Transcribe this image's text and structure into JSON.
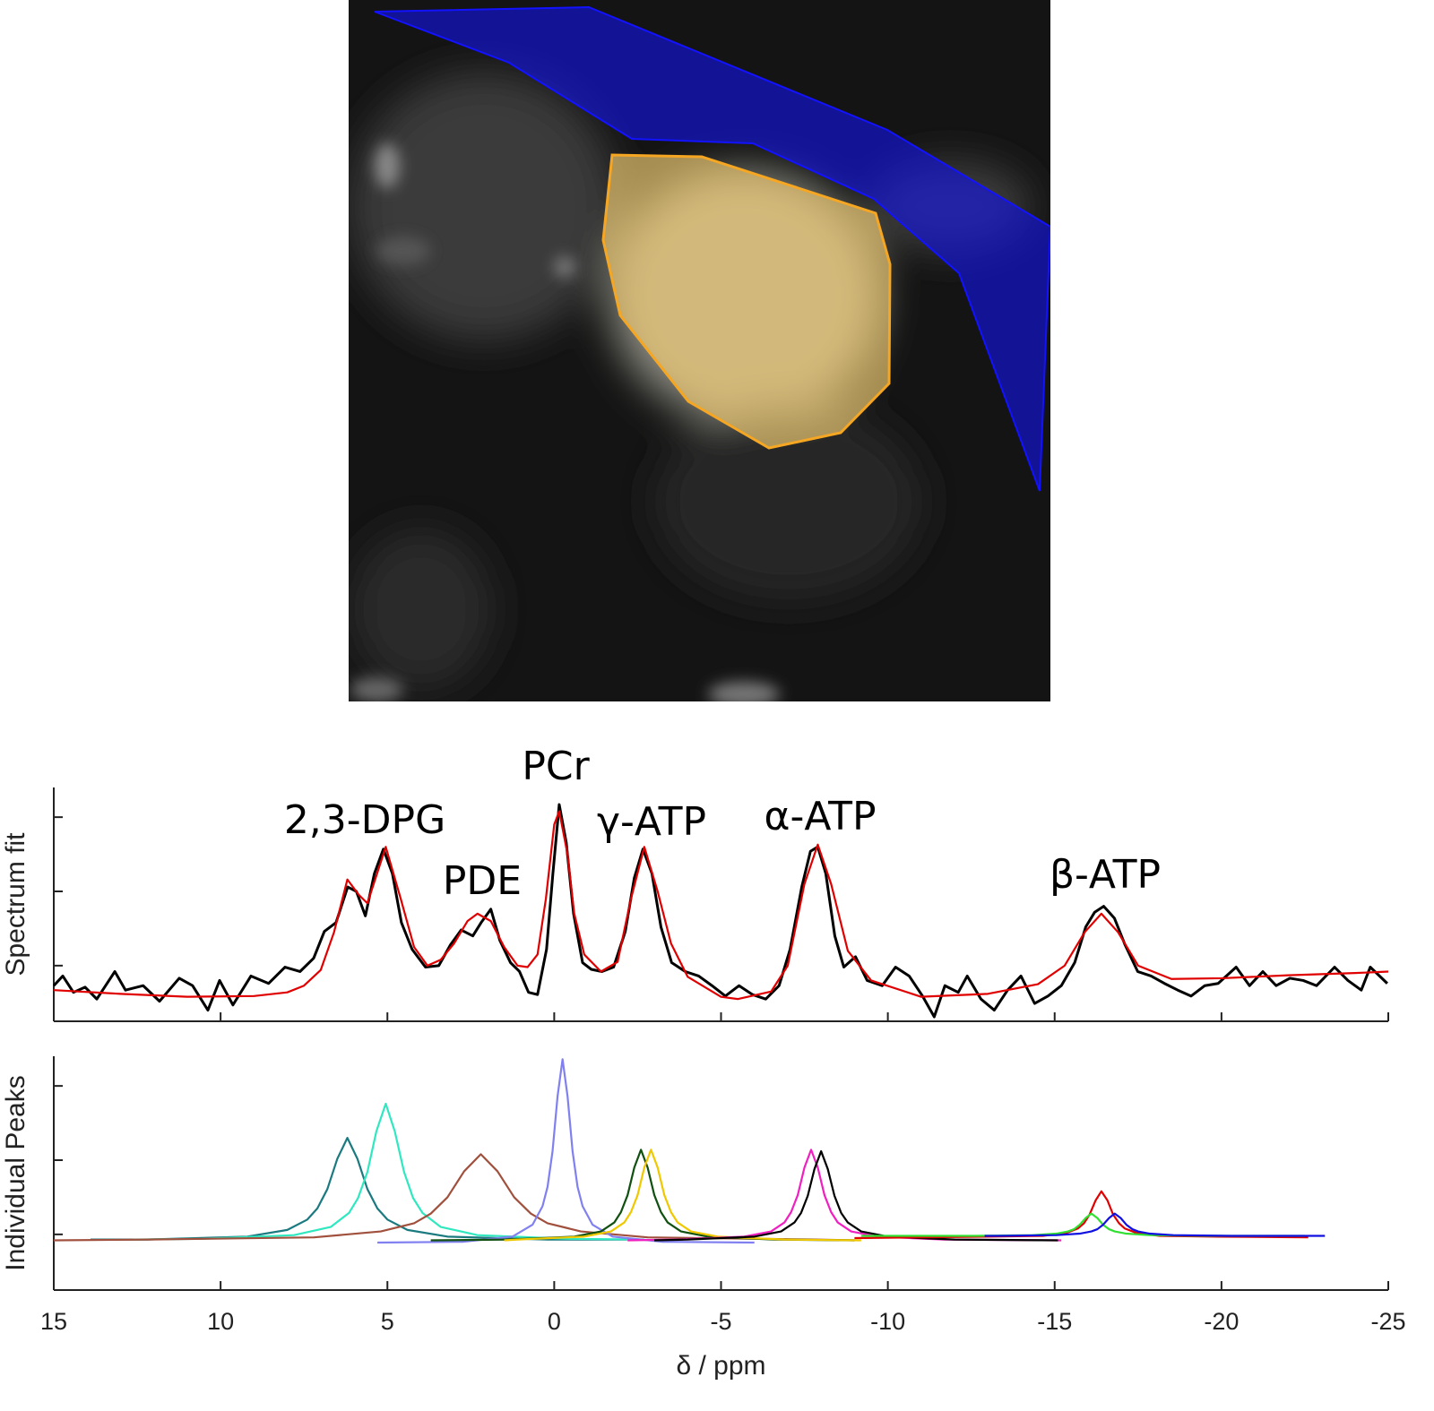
{
  "chart_data": [
    {
      "type": "line",
      "ylabel": "Spectrum fit",
      "annotations": [
        "2,3-DPG",
        "PDE",
        "PCr",
        "γ-ATP",
        "α-ATP",
        "β-ATP"
      ],
      "xlim": [
        15,
        -25
      ],
      "xticks": [
        15,
        10,
        5,
        0,
        -5,
        -10,
        -15,
        -20,
        -25
      ],
      "ylim": [
        -0.75,
        2.4
      ],
      "yticks": [
        0,
        1,
        2
      ],
      "series": [
        {
          "color": "#000000",
          "x": [
            15.0,
            14.73,
            14.41,
            14.06,
            13.71,
            13.17,
            12.85,
            12.32,
            11.83,
            11.24,
            10.84,
            10.38,
            10.03,
            9.63,
            9.09,
            8.56,
            8.07,
            7.62,
            7.21,
            6.89,
            6.54,
            6.19,
            5.93,
            5.66,
            5.39,
            5.12,
            4.85,
            4.58,
            4.26,
            3.86,
            3.46,
            3.11,
            2.79,
            2.44,
            2.19,
            1.9,
            1.63,
            1.31,
            1.04,
            0.77,
            0.5,
            0.23,
            0.04,
            -0.15,
            -0.36,
            -0.58,
            -0.85,
            -1.11,
            -1.43,
            -1.78,
            -2.13,
            -2.4,
            -2.66,
            -2.93,
            -3.2,
            -3.52,
            -3.93,
            -4.33,
            -4.73,
            -5.13,
            -5.54,
            -5.94,
            -6.34,
            -6.74,
            -7.07,
            -7.42,
            -7.68,
            -7.9,
            -8.14,
            -8.41,
            -8.68,
            -9.03,
            -9.38,
            -9.83,
            -10.23,
            -10.64,
            -11.04,
            -11.39,
            -11.71,
            -12.11,
            -12.38,
            -12.79,
            -13.19,
            -13.59,
            -13.99,
            -14.4,
            -14.8,
            -15.2,
            -15.6,
            -15.93,
            -16.2,
            -16.47,
            -16.79,
            -17.11,
            -17.49,
            -17.89,
            -18.29,
            -18.69,
            -19.09,
            -19.5,
            -19.9,
            -20.44,
            -20.84,
            -21.24,
            -21.64,
            -22.05,
            -22.45,
            -22.85,
            -23.39,
            -23.79,
            -24.19,
            -24.46,
            -24.97
          ],
          "values": [
            -0.27,
            -0.14,
            -0.36,
            -0.29,
            -0.45,
            -0.08,
            -0.33,
            -0.27,
            -0.48,
            -0.17,
            -0.27,
            -0.6,
            -0.2,
            -0.53,
            -0.14,
            -0.24,
            -0.02,
            -0.08,
            0.1,
            0.46,
            0.58,
            1.06,
            1.0,
            0.67,
            1.24,
            1.57,
            1.24,
            0.58,
            0.22,
            -0.02,
            0.0,
            0.28,
            0.48,
            0.4,
            0.58,
            0.76,
            0.34,
            0.04,
            -0.08,
            -0.36,
            -0.39,
            0.22,
            1.24,
            2.17,
            1.66,
            0.7,
            0.04,
            -0.05,
            -0.08,
            -0.02,
            0.46,
            1.18,
            1.57,
            1.24,
            0.52,
            0.04,
            -0.08,
            -0.14,
            -0.27,
            -0.41,
            -0.27,
            -0.39,
            -0.45,
            -0.27,
            0.22,
            1.06,
            1.54,
            1.6,
            1.24,
            0.4,
            -0.02,
            0.12,
            -0.2,
            -0.27,
            -0.02,
            -0.14,
            -0.41,
            -0.69,
            -0.27,
            -0.36,
            -0.14,
            -0.45,
            -0.6,
            -0.33,
            -0.14,
            -0.51,
            -0.41,
            -0.27,
            0.04,
            0.52,
            0.72,
            0.8,
            0.64,
            0.28,
            -0.08,
            -0.14,
            -0.24,
            -0.33,
            -0.41,
            -0.27,
            -0.24,
            -0.02,
            -0.27,
            -0.08,
            -0.27,
            -0.17,
            -0.2,
            -0.27,
            -0.02,
            -0.2,
            -0.33,
            -0.02,
            -0.24
          ]
        },
        {
          "color": "#e00000",
          "x": [
            15,
            13,
            11,
            9,
            8,
            7.5,
            7.0,
            6.6,
            6.2,
            5.85,
            5.6,
            5.05,
            4.6,
            4.2,
            3.8,
            3.4,
            3.0,
            2.6,
            2.3,
            1.9,
            1.5,
            1.1,
            0.8,
            0.5,
            0.25,
            0.0,
            -0.15,
            -0.4,
            -0.6,
            -0.9,
            -1.4,
            -1.9,
            -2.3,
            -2.7,
            -3.1,
            -3.5,
            -4.0,
            -5.0,
            -5.5,
            -6.5,
            -7.0,
            -7.5,
            -7.9,
            -8.3,
            -8.8,
            -9.5,
            -11,
            -13,
            -14.5,
            -15.3,
            -15.9,
            -16.4,
            -16.9,
            -17.5,
            -18.5,
            -20,
            -22,
            -24,
            -25
          ],
          "values": [
            -0.33,
            -0.38,
            -0.42,
            -0.41,
            -0.36,
            -0.27,
            -0.06,
            0.45,
            1.16,
            0.95,
            0.84,
            1.6,
            0.9,
            0.25,
            0.0,
            0.08,
            0.3,
            0.6,
            0.7,
            0.6,
            0.25,
            0.0,
            -0.02,
            0.15,
            0.9,
            1.9,
            2.08,
            1.5,
            0.7,
            0.15,
            -0.08,
            0.05,
            0.9,
            1.6,
            1.0,
            0.3,
            -0.15,
            -0.42,
            -0.45,
            -0.35,
            0.0,
            1.1,
            1.63,
            1.1,
            0.2,
            -0.2,
            -0.42,
            -0.38,
            -0.25,
            0.0,
            0.45,
            0.7,
            0.45,
            0.0,
            -0.18,
            -0.17,
            -0.13,
            -0.1,
            -0.08
          ]
        }
      ]
    },
    {
      "type": "line",
      "ylabel": "Individual Peaks",
      "xlabel": "δ / ppm",
      "xlim": [
        15,
        -25
      ],
      "xticks": [
        15,
        10,
        5,
        0,
        -5,
        -10,
        -15,
        -20,
        -25
      ],
      "ylim": [
        -0.75,
        2.4
      ],
      "yticks": [
        0,
        1,
        2
      ],
      "series": [
        {
          "color": "#1a7a80",
          "x": [
            13.9,
            12.2,
            9.2,
            8.0,
            7.4,
            7.1,
            6.8,
            6.5,
            6.2,
            5.9,
            5.6,
            5.3,
            5.0,
            4.4,
            3.2,
            0.2,
            -2.5
          ],
          "values": [
            -0.07,
            -0.07,
            -0.03,
            0.06,
            0.2,
            0.35,
            0.61,
            1.02,
            1.3,
            1.02,
            0.61,
            0.35,
            0.2,
            0.06,
            -0.03,
            -0.07,
            -0.07
          ]
        },
        {
          "color": "#30e8c0",
          "x": [
            12.6,
            10.55,
            7.8,
            6.7,
            6.15,
            5.88,
            5.6,
            5.33,
            5.05,
            4.78,
            4.5,
            4.23,
            3.95,
            3.4,
            2.3,
            -0.45,
            -2.7
          ],
          "values": [
            -0.07,
            -0.06,
            -0.01,
            0.1,
            0.29,
            0.49,
            0.84,
            1.39,
            1.76,
            1.39,
            0.84,
            0.49,
            0.29,
            0.1,
            -0.01,
            -0.06,
            -0.07
          ]
        },
        {
          "color": "#a0503c",
          "x": [
            15.0,
            12.2,
            7.2,
            5.2,
            4.2,
            3.7,
            3.2,
            2.7,
            2.2,
            1.7,
            1.2,
            0.7,
            0.2,
            -0.8,
            -2.8,
            -7.8,
            -9.0
          ],
          "values": [
            -0.08,
            -0.07,
            -0.04,
            0.04,
            0.15,
            0.28,
            0.5,
            0.85,
            1.08,
            0.85,
            0.5,
            0.28,
            0.15,
            0.04,
            -0.04,
            -0.07,
            -0.08
          ]
        },
        {
          "color": "#8080f0",
          "x": [
            5.3,
            2.75,
            1.25,
            0.65,
            0.35,
            0.2,
            0.05,
            -0.1,
            -0.25,
            -0.4,
            -0.55,
            -0.7,
            -0.85,
            -1.15,
            -1.75,
            -3.25,
            -6.0
          ],
          "values": [
            -0.11,
            -0.1,
            -0.03,
            0.13,
            0.38,
            0.64,
            1.12,
            1.86,
            2.36,
            1.86,
            1.12,
            0.64,
            0.38,
            0.13,
            -0.03,
            -0.1,
            -0.11
          ]
        },
        {
          "color": "#105010",
          "x": [
            3.7,
            1.4,
            -0.6,
            -1.4,
            -1.8,
            -2.0,
            -2.2,
            -2.4,
            -2.6,
            -2.8,
            -3.0,
            -3.2,
            -3.4,
            -3.8,
            -4.6,
            -6.6,
            -9.0
          ],
          "values": [
            -0.08,
            -0.07,
            -0.03,
            0.04,
            0.16,
            0.3,
            0.53,
            0.9,
            1.14,
            0.9,
            0.53,
            0.3,
            0.16,
            0.04,
            -0.03,
            -0.07,
            -0.08
          ]
        },
        {
          "color": "#f0c800",
          "x": [
            1.5,
            1.1,
            -0.9,
            -1.7,
            -2.1,
            -2.3,
            -2.5,
            -2.7,
            -2.9,
            -3.1,
            -3.3,
            -3.5,
            -3.7,
            -4.1,
            -4.9,
            -6.9,
            -9.2
          ],
          "values": [
            -0.08,
            -0.07,
            -0.03,
            0.04,
            0.16,
            0.3,
            0.53,
            0.9,
            1.14,
            0.9,
            0.53,
            0.3,
            0.16,
            0.04,
            -0.03,
            -0.07,
            -0.08
          ]
        },
        {
          "color": "#f020c0",
          "x": [
            -2.2,
            -3.7,
            -5.7,
            -6.5,
            -6.9,
            -7.1,
            -7.3,
            -7.5,
            -7.7,
            -7.9,
            -8.1,
            -8.3,
            -8.5,
            -8.9,
            -9.7,
            -11.7,
            -15.2
          ],
          "values": [
            -0.08,
            -0.07,
            -0.03,
            0.04,
            0.16,
            0.3,
            0.53,
            0.9,
            1.14,
            0.9,
            0.53,
            0.3,
            0.16,
            0.04,
            -0.03,
            -0.07,
            -0.08
          ]
        },
        {
          "color": "#000000",
          "x": [
            -3.0,
            -4.0,
            -6.0,
            -6.8,
            -7.2,
            -7.4,
            -7.6,
            -7.8,
            -8.0,
            -8.2,
            -8.4,
            -8.6,
            -8.8,
            -9.2,
            -10.0,
            -12.0,
            -15.1
          ],
          "values": [
            -0.08,
            -0.07,
            -0.03,
            0.04,
            0.16,
            0.29,
            0.52,
            0.88,
            1.12,
            0.88,
            0.52,
            0.29,
            0.16,
            0.04,
            -0.03,
            -0.07,
            -0.08
          ]
        },
        {
          "color": "#e00000",
          "x": [
            -9.0,
            -12.9,
            -14.65,
            -15.35,
            -15.7,
            -15.88,
            -16.05,
            -16.23,
            -16.4,
            -16.58,
            -16.75,
            -16.93,
            -17.1,
            -17.45,
            -18.15,
            -19.9,
            -22.6
          ],
          "values": [
            -0.05,
            -0.03,
            -0.02,
            0.02,
            0.08,
            0.15,
            0.27,
            0.46,
            0.58,
            0.46,
            0.27,
            0.15,
            0.08,
            0.02,
            -0.02,
            -0.03,
            -0.04
          ]
        },
        {
          "color": "#30e030",
          "x": [
            -9.2,
            -12.6,
            -14.35,
            -15.05,
            -15.4,
            -15.58,
            -15.75,
            -15.93,
            -16.1,
            -16.28,
            -16.45,
            -16.63,
            -16.8,
            -17.15,
            -17.85,
            -19.6,
            -22.5
          ],
          "values": [
            -0.02,
            -0.02,
            -0.01,
            0.01,
            0.04,
            0.07,
            0.13,
            0.22,
            0.28,
            0.22,
            0.13,
            0.07,
            0.04,
            0.01,
            -0.01,
            -0.02,
            -0.02
          ]
        },
        {
          "color": "#1010e0",
          "x": [
            -12.9,
            -13.3,
            -15.05,
            -15.75,
            -16.1,
            -16.28,
            -16.45,
            -16.63,
            -16.8,
            -16.98,
            -17.15,
            -17.33,
            -17.5,
            -17.85,
            -18.55,
            -20.3,
            -23.1
          ],
          "values": [
            -0.02,
            -0.02,
            -0.01,
            0.01,
            0.04,
            0.07,
            0.13,
            0.22,
            0.28,
            0.22,
            0.13,
            0.07,
            0.04,
            0.01,
            -0.01,
            -0.02,
            -0.02
          ]
        }
      ]
    }
  ]
}
